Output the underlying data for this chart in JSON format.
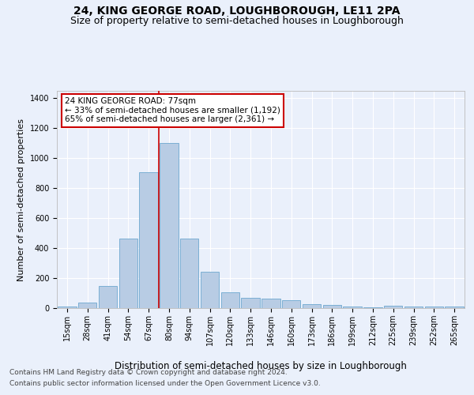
{
  "title": "24, KING GEORGE ROAD, LOUGHBOROUGH, LE11 2PA",
  "subtitle": "Size of property relative to semi-detached houses in Loughborough",
  "xlabel": "Distribution of semi-detached houses by size in Loughborough",
  "ylabel": "Number of semi-detached properties",
  "categories": [
    "15sqm",
    "28sqm",
    "41sqm",
    "54sqm",
    "67sqm",
    "80sqm",
    "94sqm",
    "107sqm",
    "120sqm",
    "133sqm",
    "146sqm",
    "160sqm",
    "173sqm",
    "186sqm",
    "199sqm",
    "212sqm",
    "225sqm",
    "239sqm",
    "252sqm",
    "265sqm"
  ],
  "values": [
    10,
    35,
    148,
    462,
    905,
    1100,
    465,
    245,
    108,
    70,
    65,
    52,
    27,
    20,
    10,
    5,
    14,
    10,
    10,
    10
  ],
  "bar_color": "#b8cce4",
  "bar_edge_color": "#7bafd4",
  "annotation_text": "24 KING GEORGE ROAD: 77sqm\n← 33% of semi-detached houses are smaller (1,192)\n65% of semi-detached houses are larger (2,361) →",
  "annotation_box_color": "#ffffff",
  "annotation_box_edge_color": "#cc0000",
  "vline_color": "#cc0000",
  "vline_x": 4.5,
  "ylim": [
    0,
    1450
  ],
  "yticks": [
    0,
    200,
    400,
    600,
    800,
    1000,
    1200,
    1400
  ],
  "background_color": "#eaf0fb",
  "plot_bg_color": "#eaf0fb",
  "title_fontsize": 10,
  "subtitle_fontsize": 9,
  "xlabel_fontsize": 8.5,
  "ylabel_fontsize": 8,
  "tick_fontsize": 7,
  "annotation_fontsize": 7.5,
  "footer_fontsize": 6.5
}
